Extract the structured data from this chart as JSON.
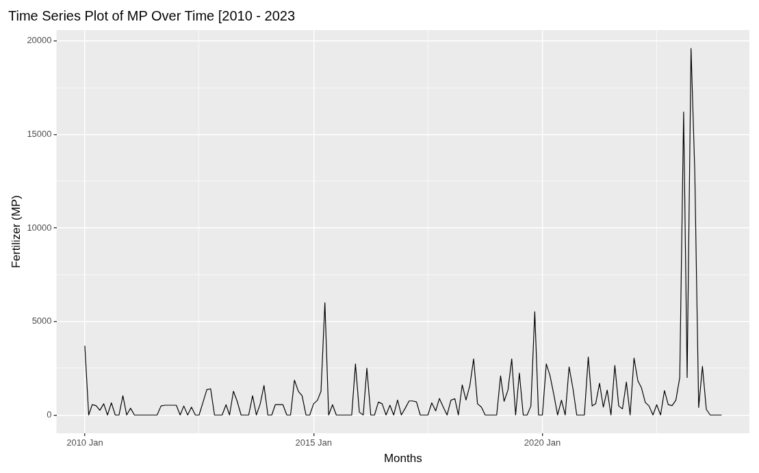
{
  "chart_data": {
    "type": "line",
    "title": "Time Series Plot of MP Over Time [2010 - 2023",
    "xlabel": "Months",
    "ylabel": "Fertilizer (MP)",
    "x": [
      "2010-01",
      "2010-02",
      "2010-03",
      "2010-04",
      "2010-05",
      "2010-06",
      "2010-07",
      "2010-08",
      "2010-09",
      "2010-10",
      "2010-11",
      "2010-12",
      "2011-01",
      "2011-02",
      "2011-03",
      "2011-04",
      "2011-05",
      "2011-06",
      "2011-07",
      "2011-08",
      "2011-09",
      "2011-10",
      "2011-11",
      "2011-12",
      "2012-01",
      "2012-02",
      "2012-03",
      "2012-04",
      "2012-05",
      "2012-06",
      "2012-07",
      "2012-08",
      "2012-09",
      "2012-10",
      "2012-11",
      "2012-12",
      "2013-01",
      "2013-02",
      "2013-03",
      "2013-04",
      "2013-05",
      "2013-06",
      "2013-07",
      "2013-08",
      "2013-09",
      "2013-10",
      "2013-11",
      "2013-12",
      "2014-01",
      "2014-02",
      "2014-03",
      "2014-04",
      "2014-05",
      "2014-06",
      "2014-07",
      "2014-08",
      "2014-09",
      "2014-10",
      "2014-11",
      "2014-12",
      "2015-01",
      "2015-02",
      "2015-03",
      "2015-04",
      "2015-05",
      "2015-06",
      "2015-07",
      "2015-08",
      "2015-09",
      "2015-10",
      "2015-11",
      "2015-12",
      "2016-01",
      "2016-02",
      "2016-03",
      "2016-04",
      "2016-05",
      "2016-06",
      "2016-07",
      "2016-08",
      "2016-09",
      "2016-10",
      "2016-11",
      "2016-12",
      "2017-01",
      "2017-02",
      "2017-03",
      "2017-04",
      "2017-05",
      "2017-06",
      "2017-07",
      "2017-08",
      "2017-09",
      "2017-10",
      "2017-11",
      "2017-12",
      "2018-01",
      "2018-02",
      "2018-03",
      "2018-04",
      "2018-05",
      "2018-06",
      "2018-07",
      "2018-08",
      "2018-09",
      "2018-10",
      "2018-11",
      "2018-12",
      "2019-01",
      "2019-02",
      "2019-03",
      "2019-04",
      "2019-05",
      "2019-06",
      "2019-07",
      "2019-08",
      "2019-09",
      "2019-10",
      "2019-11",
      "2019-12",
      "2020-01",
      "2020-02",
      "2020-03",
      "2020-04",
      "2020-05",
      "2020-06",
      "2020-07",
      "2020-08",
      "2020-09",
      "2020-10",
      "2020-11",
      "2020-12",
      "2021-01",
      "2021-02",
      "2021-03",
      "2021-04",
      "2021-05",
      "2021-06",
      "2021-07",
      "2021-08",
      "2021-09",
      "2021-10",
      "2021-11",
      "2021-12",
      "2022-01",
      "2022-02",
      "2022-03",
      "2022-04",
      "2022-05",
      "2022-06",
      "2022-07",
      "2022-08",
      "2022-09",
      "2022-10",
      "2022-11",
      "2022-12",
      "2023-01",
      "2023-02",
      "2023-03",
      "2023-04",
      "2023-05",
      "2023-06",
      "2023-07",
      "2023-08",
      "2023-09",
      "2023-10",
      "2023-11",
      "2023-12"
    ],
    "series": [
      {
        "color": "#000000",
        "values": [
          3700,
          0,
          550,
          500,
          250,
          600,
          0,
          650,
          0,
          0,
          1030,
          0,
          360,
          0,
          0,
          0,
          0,
          0,
          0,
          0,
          480,
          520,
          520,
          520,
          520,
          0,
          480,
          0,
          420,
          0,
          0,
          670,
          1360,
          1400,
          0,
          0,
          0,
          550,
          0,
          1270,
          730,
          0,
          0,
          0,
          1030,
          0,
          600,
          1580,
          0,
          0,
          550,
          550,
          550,
          0,
          0,
          1860,
          1270,
          1030,
          0,
          0,
          600,
          790,
          1270,
          6000,
          0,
          550,
          0,
          0,
          0,
          0,
          0,
          2730,
          150,
          0,
          2500,
          0,
          0,
          690,
          600,
          0,
          520,
          0,
          800,
          0,
          360,
          750,
          750,
          700,
          0,
          0,
          0,
          650,
          220,
          880,
          420,
          0,
          790,
          870,
          0,
          1610,
          800,
          1580,
          3000,
          600,
          420,
          0,
          0,
          0,
          0,
          2090,
          730,
          1330,
          3000,
          0,
          2240,
          0,
          0,
          480,
          5520,
          0,
          0,
          2730,
          2120,
          1090,
          0,
          790,
          0,
          2570,
          1400,
          0,
          0,
          0,
          3100,
          480,
          600,
          1700,
          420,
          1330,
          0,
          2650,
          480,
          330,
          1760,
          0,
          3040,
          1820,
          1460,
          670,
          480,
          0,
          550,
          0,
          1300,
          550,
          500,
          790,
          2000,
          16200,
          2000,
          19600,
          13000,
          400,
          2600,
          300,
          0,
          0,
          0,
          0
        ]
      }
    ],
    "xlim": [
      "2009-05-20",
      "2024-07-10"
    ],
    "xticks": [
      {
        "value": "2010-01",
        "label": "2010 Jan"
      },
      {
        "value": "2012-07",
        "label": null
      },
      {
        "value": "2015-01",
        "label": "2015 Jan"
      },
      {
        "value": "2017-07",
        "label": null
      },
      {
        "value": "2020-01",
        "label": "2020 Jan"
      },
      {
        "value": "2022-07",
        "label": null
      }
    ],
    "ylim": [
      -980,
      20580
    ],
    "yticks": [
      0,
      {
        "value": 2500,
        "label": null
      },
      5000,
      {
        "value": 7500,
        "label": null
      },
      10000,
      {
        "value": 12500,
        "label": null
      },
      15000,
      {
        "value": 17500,
        "label": null
      },
      20000
    ],
    "grid": true,
    "legend": false,
    "marker": "none",
    "line_style": "solid"
  }
}
